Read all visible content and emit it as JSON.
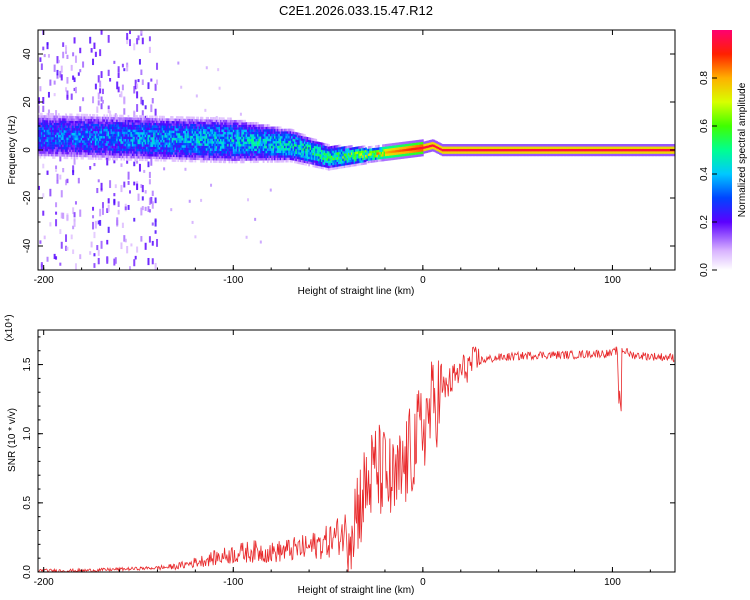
{
  "chart_data": [
    {
      "type": "heatmap",
      "title": "C2E1.2026.033.15.47.R12",
      "xlabel": "Height of straight line (km)",
      "ylabel": "Frequency (Hz)",
      "xlim": [
        -203,
        133
      ],
      "ylim": [
        -50,
        50
      ],
      "xticks": [
        -200,
        -100,
        0,
        100
      ],
      "yticks": [
        -40,
        -20,
        0,
        20,
        40
      ],
      "colorbar": {
        "label": "Normalized spectral amplitude",
        "range": [
          0,
          1
        ],
        "ticks": [
          "0.0",
          "0.2",
          "0.4",
          "0.6",
          "0.8"
        ]
      },
      "description_values": {
        "ridge_points": [
          [
            -200,
            6
          ],
          [
            -150,
            5
          ],
          [
            -100,
            4
          ],
          [
            -70,
            2
          ],
          [
            -50,
            -3
          ],
          [
            -30,
            -2
          ],
          [
            -10,
            0
          ],
          [
            0,
            1
          ],
          [
            5,
            2
          ],
          [
            10,
            0
          ],
          [
            50,
            0
          ],
          [
            133,
            0
          ]
        ],
        "ridge_peak_amplitude": [
          [
            -200,
            0.35
          ],
          [
            -150,
            0.4
          ],
          [
            -100,
            0.45
          ],
          [
            -60,
            0.5
          ],
          [
            -40,
            0.6
          ],
          [
            -20,
            0.8
          ],
          [
            0,
            0.95
          ],
          [
            50,
            0.95
          ],
          [
            133,
            0.95
          ]
        ]
      }
    },
    {
      "type": "line",
      "xlabel": "Height of straight line (km)",
      "ylabel": "SNR (10 * v/v)",
      "yscale_label": "(x10⁴)",
      "xlim": [
        -203,
        133
      ],
      "ylim": [
        0,
        1.75
      ],
      "xticks": [
        -200,
        -100,
        0,
        100
      ],
      "yticks": [
        "0.0",
        "0.5",
        "1.0",
        "1.5"
      ],
      "series": [
        {
          "name": "SNR",
          "color": "#e8282a",
          "x": [
            -203,
            -180,
            -160,
            -140,
            -130,
            -120,
            -110,
            -100,
            -90,
            -80,
            -70,
            -60,
            -50,
            -40,
            -35,
            -30,
            -25,
            -20,
            -15,
            -10,
            -5,
            0,
            5,
            10,
            15,
            20,
            25,
            30,
            40,
            50,
            60,
            70,
            80,
            90,
            100,
            104,
            110,
            120,
            133
          ],
          "values": [
            0.01,
            0.01,
            0.02,
            0.03,
            0.04,
            0.07,
            0.1,
            0.13,
            0.15,
            0.14,
            0.16,
            0.18,
            0.22,
            0.3,
            0.45,
            0.6,
            0.75,
            0.7,
            0.6,
            0.75,
            0.9,
            1.05,
            1.2,
            1.3,
            1.38,
            1.45,
            1.5,
            1.53,
            1.55,
            1.56,
            1.57,
            1.57,
            1.57,
            1.58,
            1.58,
            1.62,
            1.57,
            1.56,
            1.55
          ]
        }
      ]
    }
  ],
  "colors": {
    "line": "#e8282a",
    "axis": "#000000"
  }
}
